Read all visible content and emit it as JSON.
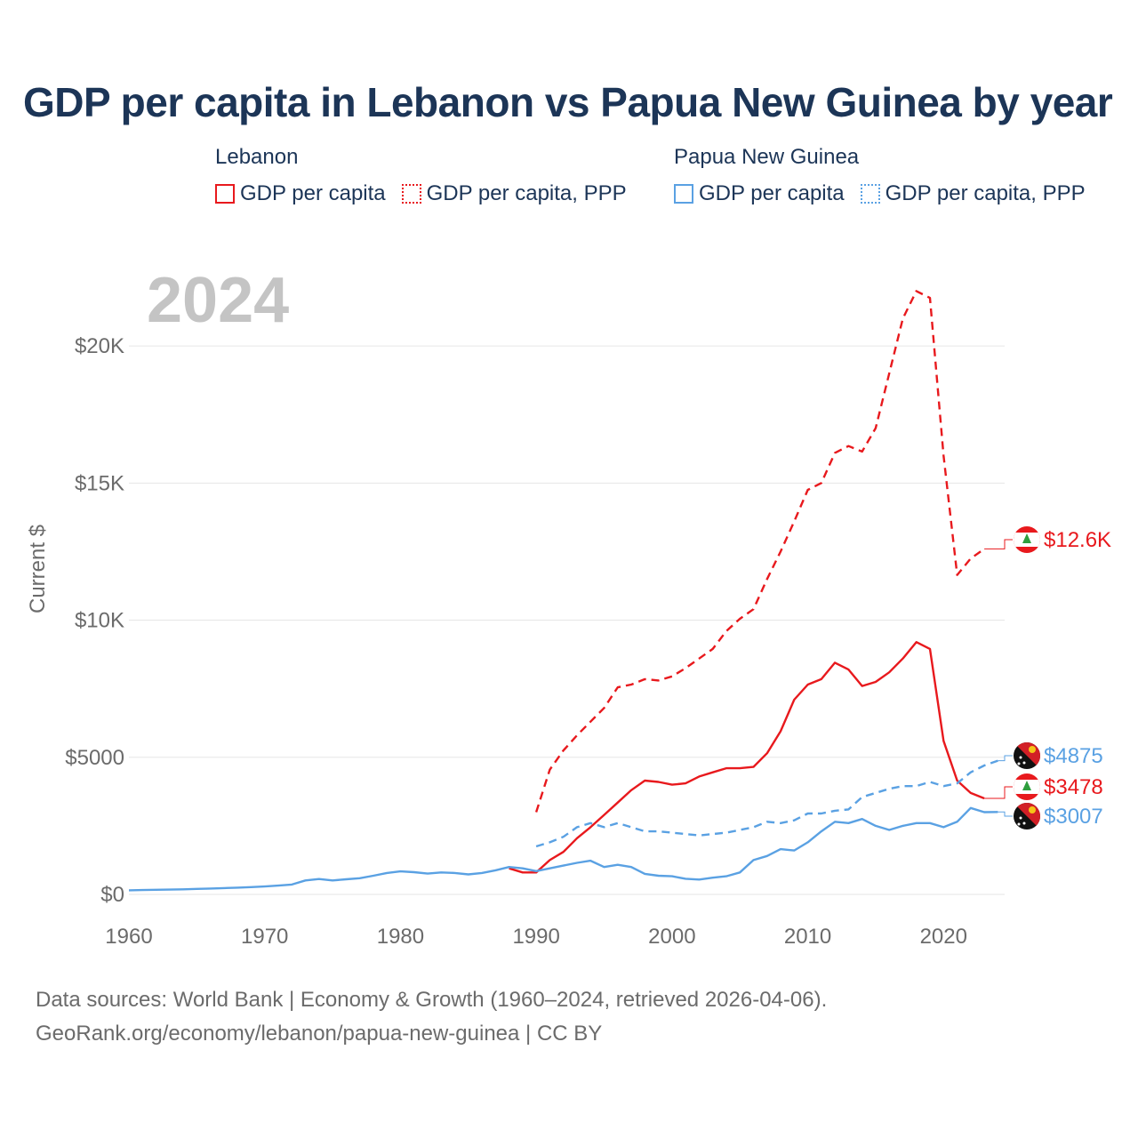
{
  "title": "GDP per capita in Lebanon vs Papua New Guinea by year",
  "legend": {
    "lebanon": {
      "title": "Lebanon",
      "gdp": "GDP per capita",
      "ppp": "GDP per capita, PPP",
      "color": "#e8191d"
    },
    "png": {
      "title": "Papua New Guinea",
      "gdp": "GDP per capita",
      "ppp": "GDP per capita, PPP",
      "color": "#5aa1e3"
    }
  },
  "footer": {
    "line1": "Data sources: World Bank | Economy & Growth (1960–2024, retrieved 2026-04-06).",
    "line2": "GeoRank.org/economy/lebanon/papua-new-guinea | CC BY"
  },
  "chart_data": {
    "type": "line",
    "title": "GDP per capita in Lebanon vs Papua New Guinea by year",
    "year_watermark": "2024",
    "ylabel": "Current $",
    "xlim": [
      1960,
      2024.5
    ],
    "ylim": [
      0,
      22500
    ],
    "x_ticks": [
      1960,
      1970,
      1980,
      1990,
      2000,
      2010,
      2020
    ],
    "x_tick_labels": [
      "1960",
      "1970",
      "1980",
      "1990",
      "2000",
      "2010",
      "2020"
    ],
    "y_ticks": [
      0,
      5000,
      10000,
      15000,
      20000
    ],
    "y_tick_labels": [
      "$0",
      "$5000",
      "$10K",
      "$15K",
      "$20K"
    ],
    "grid": true,
    "series": [
      {
        "name": "Lebanon GDP per capita",
        "color": "#e8191d",
        "dash": "solid",
        "end_label": "$3478",
        "points": [
          [
            1988,
            950
          ],
          [
            1989,
            800
          ],
          [
            1990,
            800
          ],
          [
            1991,
            1250
          ],
          [
            1992,
            1550
          ],
          [
            1993,
            2050
          ],
          [
            1994,
            2450
          ],
          [
            1995,
            2900
          ],
          [
            1996,
            3350
          ],
          [
            1997,
            3800
          ],
          [
            1998,
            4150
          ],
          [
            1999,
            4100
          ],
          [
            2000,
            4000
          ],
          [
            2001,
            4050
          ],
          [
            2002,
            4300
          ],
          [
            2003,
            4450
          ],
          [
            2004,
            4600
          ],
          [
            2005,
            4600
          ],
          [
            2006,
            4650
          ],
          [
            2007,
            5150
          ],
          [
            2008,
            5950
          ],
          [
            2009,
            7100
          ],
          [
            2010,
            7650
          ],
          [
            2011,
            7850
          ],
          [
            2012,
            8450
          ],
          [
            2013,
            8200
          ],
          [
            2014,
            7600
          ],
          [
            2015,
            7750
          ],
          [
            2016,
            8100
          ],
          [
            2017,
            8600
          ],
          [
            2018,
            9200
          ],
          [
            2019,
            8950
          ],
          [
            2020,
            5600
          ],
          [
            2021,
            4150
          ],
          [
            2022,
            3700
          ],
          [
            2023,
            3500
          ]
        ]
      },
      {
        "name": "Lebanon GDP per capita, PPP",
        "color": "#e8191d",
        "dash": "dashed",
        "end_label": "$12.6K",
        "points": [
          [
            1990,
            3000
          ],
          [
            1991,
            4550
          ],
          [
            1992,
            5250
          ],
          [
            1993,
            5800
          ],
          [
            1994,
            6300
          ],
          [
            1995,
            6800
          ],
          [
            1996,
            7550
          ],
          [
            1997,
            7650
          ],
          [
            1998,
            7850
          ],
          [
            1999,
            7800
          ],
          [
            2000,
            7950
          ],
          [
            2001,
            8250
          ],
          [
            2002,
            8600
          ],
          [
            2003,
            8950
          ],
          [
            2004,
            9600
          ],
          [
            2005,
            10050
          ],
          [
            2006,
            10400
          ],
          [
            2007,
            11500
          ],
          [
            2008,
            12500
          ],
          [
            2009,
            13600
          ],
          [
            2010,
            14750
          ],
          [
            2011,
            15000
          ],
          [
            2012,
            16100
          ],
          [
            2013,
            16350
          ],
          [
            2014,
            16150
          ],
          [
            2015,
            17000
          ],
          [
            2016,
            19000
          ],
          [
            2017,
            21000
          ],
          [
            2018,
            22000
          ],
          [
            2019,
            21750
          ],
          [
            2020,
            16000
          ],
          [
            2021,
            11650
          ],
          [
            2022,
            12250
          ],
          [
            2023,
            12600
          ]
        ]
      },
      {
        "name": "Papua New Guinea GDP per capita",
        "color": "#5aa1e3",
        "dash": "solid",
        "end_label": "$3007",
        "points": [
          [
            1960,
            150
          ],
          [
            1961,
            160
          ],
          [
            1962,
            170
          ],
          [
            1963,
            175
          ],
          [
            1964,
            185
          ],
          [
            1965,
            200
          ],
          [
            1966,
            215
          ],
          [
            1967,
            230
          ],
          [
            1968,
            245
          ],
          [
            1969,
            265
          ],
          [
            1970,
            290
          ],
          [
            1971,
            320
          ],
          [
            1972,
            360
          ],
          [
            1973,
            510
          ],
          [
            1974,
            560
          ],
          [
            1975,
            510
          ],
          [
            1976,
            550
          ],
          [
            1977,
            590
          ],
          [
            1978,
            680
          ],
          [
            1979,
            780
          ],
          [
            1980,
            840
          ],
          [
            1981,
            810
          ],
          [
            1982,
            760
          ],
          [
            1983,
            800
          ],
          [
            1984,
            780
          ],
          [
            1985,
            730
          ],
          [
            1986,
            780
          ],
          [
            1987,
            880
          ],
          [
            1988,
            1000
          ],
          [
            1989,
            950
          ],
          [
            1990,
            850
          ],
          [
            1991,
            950
          ],
          [
            1992,
            1050
          ],
          [
            1993,
            1150
          ],
          [
            1994,
            1230
          ],
          [
            1995,
            1000
          ],
          [
            1996,
            1080
          ],
          [
            1997,
            1000
          ],
          [
            1998,
            750
          ],
          [
            1999,
            680
          ],
          [
            2000,
            660
          ],
          [
            2001,
            570
          ],
          [
            2002,
            540
          ],
          [
            2003,
            610
          ],
          [
            2004,
            660
          ],
          [
            2005,
            800
          ],
          [
            2006,
            1250
          ],
          [
            2007,
            1400
          ],
          [
            2008,
            1650
          ],
          [
            2009,
            1600
          ],
          [
            2010,
            1900
          ],
          [
            2011,
            2300
          ],
          [
            2012,
            2650
          ],
          [
            2013,
            2600
          ],
          [
            2014,
            2750
          ],
          [
            2015,
            2500
          ],
          [
            2016,
            2350
          ],
          [
            2017,
            2500
          ],
          [
            2018,
            2600
          ],
          [
            2019,
            2600
          ],
          [
            2020,
            2450
          ],
          [
            2021,
            2650
          ],
          [
            2022,
            3150
          ],
          [
            2023,
            3000
          ],
          [
            2024,
            3007
          ]
        ]
      },
      {
        "name": "Papua New Guinea GDP per capita, PPP",
        "color": "#5aa1e3",
        "dash": "dashed",
        "end_label": "$4875",
        "points": [
          [
            1990,
            1750
          ],
          [
            1991,
            1900
          ],
          [
            1992,
            2100
          ],
          [
            1993,
            2450
          ],
          [
            1994,
            2600
          ],
          [
            1995,
            2450
          ],
          [
            1996,
            2600
          ],
          [
            1997,
            2450
          ],
          [
            1998,
            2300
          ],
          [
            1999,
            2300
          ],
          [
            2000,
            2250
          ],
          [
            2001,
            2200
          ],
          [
            2002,
            2150
          ],
          [
            2003,
            2200
          ],
          [
            2004,
            2250
          ],
          [
            2005,
            2350
          ],
          [
            2006,
            2450
          ],
          [
            2007,
            2650
          ],
          [
            2008,
            2600
          ],
          [
            2009,
            2700
          ],
          [
            2010,
            2950
          ],
          [
            2011,
            2950
          ],
          [
            2012,
            3050
          ],
          [
            2013,
            3100
          ],
          [
            2014,
            3550
          ],
          [
            2015,
            3700
          ],
          [
            2016,
            3850
          ],
          [
            2017,
            3950
          ],
          [
            2018,
            3950
          ],
          [
            2019,
            4100
          ],
          [
            2020,
            3950
          ],
          [
            2021,
            4050
          ],
          [
            2022,
            4450
          ],
          [
            2023,
            4700
          ],
          [
            2024,
            4875
          ]
        ]
      }
    ]
  }
}
